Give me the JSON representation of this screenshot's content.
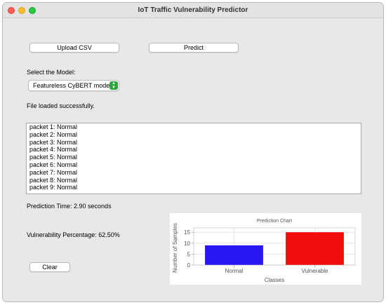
{
  "window": {
    "title": "IoT Traffic Vulnerability Predictor"
  },
  "toolbar": {
    "upload_label": "Upload CSV",
    "predict_label": "Predict"
  },
  "model": {
    "label": "Select the Model:",
    "selected": "Featureless CyBERT mode"
  },
  "status": {
    "text": "File loaded successfully."
  },
  "results": {
    "items": [
      "packet 1: Normal",
      "packet 2: Normal",
      "packet 3: Normal",
      "packet 4: Normal",
      "packet 5: Normal",
      "packet 6: Normal",
      "packet 7: Normal",
      "packet 8: Normal",
      "packet 9: Normal"
    ]
  },
  "metrics": {
    "prediction_time": "Prediction Time: 2.90 seconds",
    "vulnerability": "Vulnerability Percentage: 62.50%"
  },
  "actions": {
    "clear_label": "Clear"
  },
  "colors": {
    "normal": "#2a16f2",
    "vulnerable": "#f20d0d",
    "select_accent": "#27a836"
  },
  "chart_data": {
    "type": "bar",
    "title": "Prediction Chart",
    "xlabel": "Classes",
    "ylabel": "Number of Samples",
    "categories": [
      "Normal",
      "Vulnerable"
    ],
    "values": [
      9,
      15
    ],
    "yticks": [
      "0",
      "5",
      "10",
      "15"
    ],
    "ylim": [
      0,
      17
    ],
    "grid": true
  }
}
